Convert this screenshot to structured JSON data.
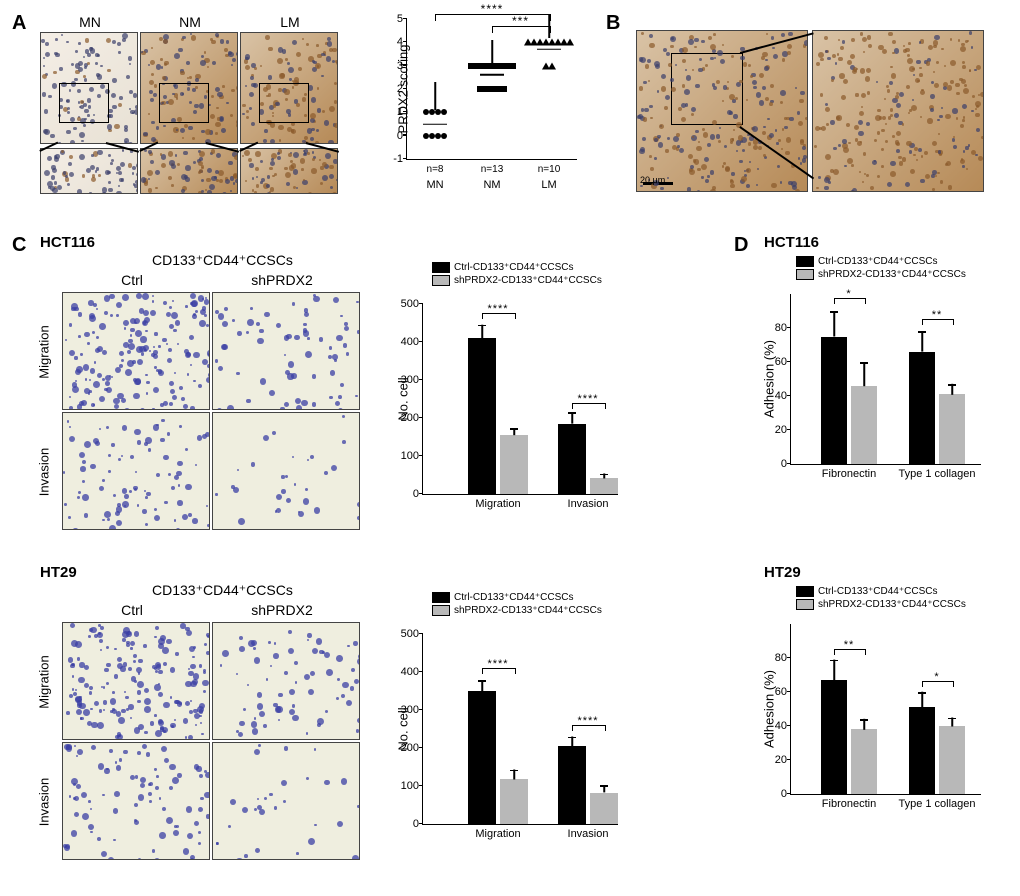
{
  "colors": {
    "ctrl_bar": "#000000",
    "sh_bar": "#b8b8b8",
    "axis": "#000000",
    "text": "#000000"
  },
  "labels": {
    "A": "A",
    "B": "B",
    "C": "C",
    "D": "D"
  },
  "panelA": {
    "columns": [
      "MN",
      "NM",
      "LM"
    ],
    "ylabel": "PRDX2 scoring",
    "ylim": [
      -1,
      5
    ],
    "yticks": [
      -1,
      0,
      1,
      2,
      3,
      4,
      5
    ],
    "groups": [
      {
        "label": "MN",
        "n_label": "n=8",
        "n": 8,
        "mean": 0.5,
        "sd": 0.6,
        "marker": "circle",
        "points": [
          0,
          0,
          0,
          0,
          1,
          1,
          1,
          1
        ]
      },
      {
        "label": "NM",
        "n_label": "n=13",
        "n": 13,
        "mean": 2.62,
        "sd": 0.5,
        "marker": "square",
        "points": [
          2,
          2,
          2,
          2,
          2,
          3,
          3,
          3,
          3,
          3,
          3,
          3,
          3
        ]
      },
      {
        "label": "LM",
        "n_label": "n=10",
        "n": 10,
        "mean": 3.7,
        "sd": 0.5,
        "marker": "tri",
        "points": [
          3,
          3,
          4,
          4,
          4,
          4,
          4,
          4,
          4,
          4
        ]
      }
    ],
    "sig": [
      {
        "from": 0,
        "to": 2,
        "y": 4.9,
        "label": "****"
      },
      {
        "from": 1,
        "to": 2,
        "y": 4.4,
        "label": "***"
      }
    ]
  },
  "panelB": {
    "scale_label": "20 μm"
  },
  "panelC": {
    "cell_lines": [
      "HCT116",
      "HT29"
    ],
    "group_label": "CD133⁺CD44⁺CCSCs",
    "cols": [
      "Ctrl",
      "shPRDX2"
    ],
    "rows": [
      "Migration",
      "Invasion"
    ],
    "bar_ylabel": "No. cell",
    "bar_xticks": [
      "Migration",
      "Invasion"
    ],
    "legend": [
      "Ctrl-CD133⁺CD44⁺CCSCs",
      "shPRDX2-CD133⁺CD44⁺CCSCs"
    ],
    "HCT116": {
      "ylim": [
        0,
        500
      ],
      "yticks": [
        0,
        100,
        200,
        300,
        400,
        500
      ],
      "bars": [
        {
          "group": "Migration",
          "series": "Ctrl",
          "value": 410,
          "err": 35
        },
        {
          "group": "Migration",
          "series": "shPRDX2",
          "value": 155,
          "err": 18
        },
        {
          "group": "Invasion",
          "series": "Ctrl",
          "value": 185,
          "err": 30
        },
        {
          "group": "Invasion",
          "series": "shPRDX2",
          "value": 42,
          "err": 12
        }
      ],
      "sig": [
        {
          "group": "Migration",
          "label": "****",
          "y": 460
        },
        {
          "group": "Invasion",
          "label": "****",
          "y": 225
        }
      ]
    },
    "HT29": {
      "ylim": [
        0,
        500
      ],
      "yticks": [
        0,
        100,
        200,
        300,
        400,
        500
      ],
      "bars": [
        {
          "group": "Migration",
          "series": "Ctrl",
          "value": 350,
          "err": 28
        },
        {
          "group": "Migration",
          "series": "shPRDX2",
          "value": 118,
          "err": 25
        },
        {
          "group": "Invasion",
          "series": "Ctrl",
          "value": 205,
          "err": 25
        },
        {
          "group": "Invasion",
          "series": "shPRDX2",
          "value": 82,
          "err": 20
        }
      ],
      "sig": [
        {
          "group": "Migration",
          "label": "****",
          "y": 395
        },
        {
          "group": "Invasion",
          "label": "****",
          "y": 245
        }
      ]
    }
  },
  "panelD": {
    "cell_lines": [
      "HCT116",
      "HT29"
    ],
    "ylabel": "Adhesion (%)",
    "xticks": [
      "Fibronectin",
      "Type 1 collagen"
    ],
    "legend": [
      "Ctrl-CD133⁺CD44⁺CCSCs",
      "shPRDX2-CD133⁺CD44⁺CCSCs"
    ],
    "HCT116": {
      "ylim": [
        0,
        100
      ],
      "yticks": [
        0,
        20,
        40,
        60,
        80
      ],
      "bars": [
        {
          "group": "Fibronectin",
          "series": "Ctrl",
          "value": 75,
          "err": 15
        },
        {
          "group": "Fibronectin",
          "series": "shPRDX2",
          "value": 46,
          "err": 14
        },
        {
          "group": "Type 1 collagen",
          "series": "Ctrl",
          "value": 66,
          "err": 12
        },
        {
          "group": "Type 1 collagen",
          "series": "shPRDX2",
          "value": 41,
          "err": 6
        }
      ],
      "sig": [
        {
          "group": "Fibronectin",
          "label": "*",
          "y": 94
        },
        {
          "group": "Type 1 collagen",
          "label": "**",
          "y": 82
        }
      ]
    },
    "HT29": {
      "ylim": [
        0,
        100
      ],
      "yticks": [
        0,
        20,
        40,
        60,
        80
      ],
      "bars": [
        {
          "group": "Fibronectin",
          "series": "Ctrl",
          "value": 67,
          "err": 12
        },
        {
          "group": "Fibronectin",
          "series": "shPRDX2",
          "value": 38,
          "err": 6
        },
        {
          "group": "Type 1 collagen",
          "series": "Ctrl",
          "value": 51,
          "err": 9
        },
        {
          "group": "Type 1 collagen",
          "series": "shPRDX2",
          "value": 40,
          "err": 5
        }
      ],
      "sig": [
        {
          "group": "Fibronectin",
          "label": "**",
          "y": 82
        },
        {
          "group": "Type 1 collagen",
          "label": "*",
          "y": 63
        }
      ]
    }
  }
}
